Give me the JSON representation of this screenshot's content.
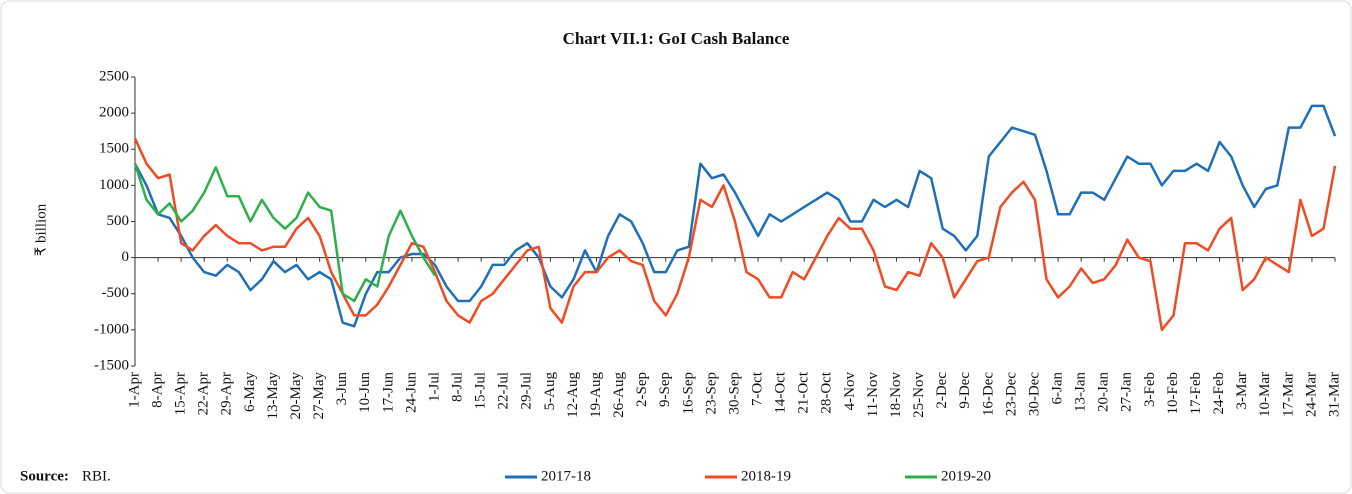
{
  "chart_data": {
    "type": "line",
    "title": "Chart VII.1: GoI Cash Balance",
    "y_label": "₹ billion",
    "source_label": "Source:",
    "source": "RBI.",
    "categories": [
      "1-Apr",
      null,
      "8-Apr",
      null,
      "15-Apr",
      null,
      "22-Apr",
      null,
      "29-Apr",
      null,
      "6-May",
      null,
      "13-May",
      null,
      "20-May",
      null,
      "27-May",
      null,
      "3-Jun",
      null,
      "10-Jun",
      null,
      "17-Jun",
      null,
      "24-Jun",
      null,
      "1-Jul",
      null,
      "8-Jul",
      null,
      "15-Jul",
      null,
      "22-Jul",
      null,
      "29-Jul",
      null,
      "5-Aug",
      null,
      "12-Aug",
      null,
      "19-Aug",
      null,
      "26-Aug",
      null,
      "2-Sep",
      null,
      "9-Sep",
      null,
      "16-Sep",
      null,
      "23-Sep",
      null,
      "30-Sep",
      null,
      "7-Oct",
      null,
      "14-Oct",
      null,
      "21-Oct",
      null,
      "28-Oct",
      null,
      "4-Nov",
      null,
      "11-Nov",
      null,
      "18-Nov",
      null,
      "25-Nov",
      null,
      "2-Dec",
      null,
      "9-Dec",
      null,
      "16-Dec",
      null,
      "23-Dec",
      null,
      "30-Dec",
      null,
      "6-Jan",
      null,
      "13-Jan",
      null,
      "20-Jan",
      null,
      "27-Jan",
      null,
      "3-Feb",
      null,
      "10-Feb",
      null,
      "17-Feb",
      null,
      "24-Feb",
      null,
      "3-Mar",
      null,
      "10-Mar",
      null,
      "17-Mar",
      null,
      "24-Mar",
      null,
      "31-Mar"
    ],
    "series": [
      {
        "name": "2017-18",
        "color": "#1f6fb8",
        "values": [
          1300,
          1000,
          600,
          550,
          300,
          0,
          -200,
          -250,
          -100,
          -200,
          -450,
          -300,
          -50,
          -200,
          -100,
          -300,
          -200,
          -300,
          -900,
          -950,
          -500,
          -200,
          -200,
          0,
          50,
          50,
          -100,
          -400,
          -600,
          -600,
          -400,
          -100,
          -100,
          100,
          200,
          0,
          -400,
          -550,
          -300,
          100,
          -200,
          300,
          600,
          500,
          200,
          -200,
          -200,
          100,
          150,
          1300,
          1100,
          1150,
          900,
          600,
          300,
          600,
          500,
          600,
          700,
          800,
          900,
          800,
          500,
          500,
          800,
          700,
          800,
          700,
          1200,
          1100,
          400,
          300,
          100,
          300,
          1400,
          1600,
          1800,
          1750,
          1700,
          1200,
          600,
          600,
          900,
          900,
          800,
          1100,
          1400,
          1300,
          1300,
          1000,
          1200,
          1200,
          1300,
          1200,
          1600,
          1400,
          1000,
          700,
          950,
          1000,
          1800,
          1800,
          2100,
          2100,
          1680
        ]
      },
      {
        "name": "2018-19",
        "color": "#f04b23",
        "values": [
          1650,
          1300,
          1100,
          1150,
          200,
          100,
          300,
          450,
          300,
          200,
          200,
          100,
          150,
          150,
          400,
          550,
          300,
          -200,
          -500,
          -800,
          -800,
          -650,
          -400,
          -100,
          200,
          150,
          -200,
          -600,
          -800,
          -900,
          -600,
          -500,
          -300,
          -100,
          100,
          150,
          -700,
          -900,
          -400,
          -200,
          -200,
          0,
          100,
          -50,
          -100,
          -600,
          -800,
          -500,
          0,
          800,
          700,
          1000,
          500,
          -200,
          -300,
          -550,
          -550,
          -200,
          -300,
          0,
          300,
          550,
          400,
          400,
          100,
          -400,
          -450,
          -200,
          -250,
          200,
          0,
          -550,
          -300,
          -50,
          0,
          700,
          900,
          1050,
          800,
          -300,
          -550,
          -400,
          -150,
          -350,
          -300,
          -100,
          250,
          0,
          -50,
          -1000,
          -800,
          200,
          200,
          100,
          400,
          550,
          -450,
          -300,
          0,
          -100,
          -200,
          800,
          300,
          400,
          1270
        ]
      },
      {
        "name": "2019-20",
        "color": "#2bb04a",
        "values": [
          1300,
          800,
          600,
          750,
          500,
          650,
          900,
          1250,
          850,
          850,
          500,
          800,
          550,
          400,
          550,
          900,
          700,
          650,
          -500,
          -600,
          -300,
          -400,
          300,
          650,
          300,
          0,
          -250,
          null,
          null,
          null,
          null,
          null,
          null,
          null,
          null,
          null,
          null,
          null,
          null,
          null,
          null,
          null,
          null,
          null,
          null,
          null,
          null,
          null,
          null,
          null,
          null,
          null,
          null,
          null,
          null,
          null,
          null,
          null,
          null,
          null,
          null,
          null,
          null,
          null,
          null,
          null,
          null,
          null,
          null,
          null,
          null,
          null,
          null,
          null,
          null,
          null,
          null,
          null,
          null,
          null,
          null,
          null,
          null,
          null,
          null,
          null,
          null,
          null,
          null,
          null,
          null,
          null,
          null,
          null,
          null,
          null,
          null,
          null,
          null,
          null,
          null,
          null,
          null,
          null,
          null
        ]
      }
    ],
    "ylim": [
      -1500,
      2500
    ],
    "yticks": [
      -1500,
      -1000,
      -500,
      0,
      500,
      1000,
      1500,
      2000,
      2500
    ],
    "grid": false,
    "legend": "bottom"
  }
}
